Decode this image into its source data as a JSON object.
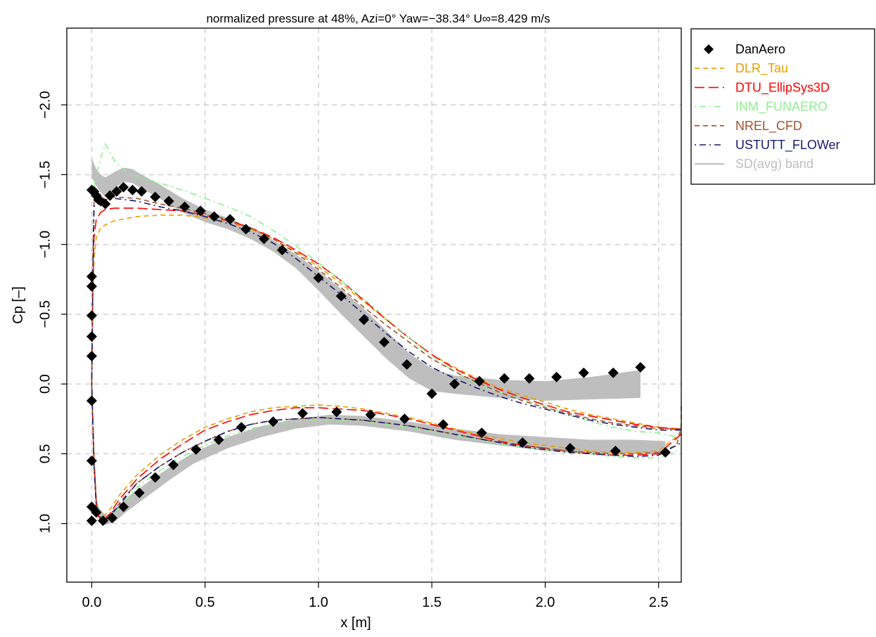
{
  "chart_data": {
    "type": "line",
    "title": "normalized pressure at 48%, Azi=0° Yaw=−38.34° U∞=8.429 m/s",
    "xlabel": "x [m]",
    "ylabel": "Cp [–]",
    "xlim": [
      -0.11,
      2.6
    ],
    "ylim": [
      1.42,
      -2.55
    ],
    "y_inverted": true,
    "grid": true,
    "legend_position": "top-right",
    "x_ticks": [
      {
        "value": 0.0,
        "label": "0.0"
      },
      {
        "value": 0.5,
        "label": "0.5"
      },
      {
        "value": 1.0,
        "label": "1.0"
      },
      {
        "value": 1.5,
        "label": "1.5"
      },
      {
        "value": 2.0,
        "label": "2.0"
      },
      {
        "value": 2.5,
        "label": "2.5"
      }
    ],
    "y_ticks": [
      {
        "value": -2.0,
        "label": "−2.0"
      },
      {
        "value": -1.5,
        "label": "−1.5"
      },
      {
        "value": -1.0,
        "label": "−1.0"
      },
      {
        "value": -0.5,
        "label": "−0.5"
      },
      {
        "value": 0.0,
        "label": "0.0"
      },
      {
        "value": 0.5,
        "label": "0.5"
      },
      {
        "value": 1.0,
        "label": "1.0"
      }
    ],
    "legend": [
      {
        "name": "DanAero",
        "color": "#000000",
        "style": "diamond"
      },
      {
        "name": "DLR_Tau",
        "color": "#E69F00",
        "style": "dashed"
      },
      {
        "name": "DTU_EllipSys3D",
        "color": "#FF0000",
        "style": "longdash"
      },
      {
        "name": "INM_FUNAERO",
        "color": "#90EE90",
        "style": "dotdash"
      },
      {
        "name": "NREL_CFD",
        "color": "#A0522D",
        "style": "dashed"
      },
      {
        "name": "USTUTT_FLOWer",
        "color": "#191970",
        "style": "dotdash"
      },
      {
        "name": "SD(avg) band",
        "color": "#BEBEBE",
        "style": "solid"
      }
    ],
    "sd_band": {
      "upper_surface": [
        {
          "x": 0.0,
          "lo": -1.62,
          "hi": -1.48
        },
        {
          "x": 0.02,
          "lo": -1.54,
          "hi": -1.42
        },
        {
          "x": 0.04,
          "lo": -1.5,
          "hi": -1.37
        },
        {
          "x": 0.06,
          "lo": -1.48,
          "hi": -1.34
        },
        {
          "x": 0.1,
          "lo": -1.52,
          "hi": -1.4
        },
        {
          "x": 0.14,
          "lo": -1.55,
          "hi": -1.45
        },
        {
          "x": 0.18,
          "lo": -1.54,
          "hi": -1.44
        },
        {
          "x": 0.22,
          "lo": -1.5,
          "hi": -1.4
        },
        {
          "x": 0.3,
          "lo": -1.43,
          "hi": -1.33
        },
        {
          "x": 0.4,
          "lo": -1.33,
          "hi": -1.23
        },
        {
          "x": 0.5,
          "lo": -1.25,
          "hi": -1.16
        },
        {
          "x": 0.6,
          "lo": -1.19,
          "hi": -1.11
        },
        {
          "x": 0.7,
          "lo": -1.12,
          "hi": -1.04
        },
        {
          "x": 0.8,
          "lo": -1.03,
          "hi": -0.95
        },
        {
          "x": 0.9,
          "lo": -0.93,
          "hi": -0.83
        },
        {
          "x": 1.0,
          "lo": -0.81,
          "hi": -0.67
        },
        {
          "x": 1.1,
          "lo": -0.68,
          "hi": -0.5
        },
        {
          "x": 1.2,
          "lo": -0.54,
          "hi": -0.34
        },
        {
          "x": 1.3,
          "lo": -0.38,
          "hi": -0.18
        },
        {
          "x": 1.4,
          "lo": -0.22,
          "hi": -0.04
        },
        {
          "x": 1.5,
          "lo": -0.11,
          "hi": 0.05
        },
        {
          "x": 1.6,
          "lo": -0.06,
          "hi": 0.07
        },
        {
          "x": 1.8,
          "lo": -0.03,
          "hi": 0.1
        },
        {
          "x": 2.0,
          "lo": -0.02,
          "hi": 0.12
        },
        {
          "x": 2.2,
          "lo": -0.05,
          "hi": 0.11
        },
        {
          "x": 2.42,
          "lo": -0.1,
          "hi": 0.1
        }
      ],
      "lower_surface": [
        {
          "x": 0.03,
          "lo": 0.88,
          "hi": 0.96
        },
        {
          "x": 0.06,
          "lo": 0.94,
          "hi": 1.01
        },
        {
          "x": 0.1,
          "lo": 0.91,
          "hi": 0.99
        },
        {
          "x": 0.15,
          "lo": 0.82,
          "hi": 0.92
        },
        {
          "x": 0.25,
          "lo": 0.7,
          "hi": 0.8
        },
        {
          "x": 0.35,
          "lo": 0.59,
          "hi": 0.68
        },
        {
          "x": 0.45,
          "lo": 0.49,
          "hi": 0.57
        },
        {
          "x": 0.6,
          "lo": 0.38,
          "hi": 0.46
        },
        {
          "x": 0.75,
          "lo": 0.3,
          "hi": 0.38
        },
        {
          "x": 0.9,
          "lo": 0.25,
          "hi": 0.32
        },
        {
          "x": 1.05,
          "lo": 0.22,
          "hi": 0.29
        },
        {
          "x": 1.2,
          "lo": 0.23,
          "hi": 0.3
        },
        {
          "x": 1.4,
          "lo": 0.27,
          "hi": 0.34
        },
        {
          "x": 1.6,
          "lo": 0.32,
          "hi": 0.4
        },
        {
          "x": 1.8,
          "lo": 0.36,
          "hi": 0.44
        },
        {
          "x": 2.0,
          "lo": 0.38,
          "hi": 0.48
        },
        {
          "x": 2.2,
          "lo": 0.4,
          "hi": 0.5
        },
        {
          "x": 2.4,
          "lo": 0.4,
          "hi": 0.5
        },
        {
          "x": 2.53,
          "lo": 0.41,
          "hi": 0.51
        }
      ]
    },
    "series": [
      {
        "name": "DanAero",
        "type": "scatter",
        "marker": "diamond",
        "x": [
          0.0,
          0.01,
          0.02,
          0.03,
          0.04,
          0.06,
          0.08,
          0.11,
          0.14,
          0.18,
          0.22,
          0.28,
          0.34,
          0.41,
          0.48,
          0.54,
          0.61,
          0.68,
          0.76,
          0.84,
          1.0,
          1.1,
          1.2,
          1.29,
          1.39,
          1.5,
          1.6,
          1.71,
          1.82,
          1.93,
          2.05,
          2.17,
          2.3,
          2.42,
          0.0,
          0.0,
          0.0,
          0.0,
          0.0,
          0.0,
          0.0,
          0.0,
          0.0,
          0.02,
          0.05,
          0.09,
          0.14,
          0.21,
          0.28,
          0.36,
          0.46,
          0.56,
          0.66,
          0.8,
          0.93,
          1.08,
          1.23,
          1.38,
          1.55,
          1.72,
          1.9,
          2.11,
          2.31,
          2.53
        ],
        "y": [
          -1.39,
          -1.38,
          -1.35,
          -1.32,
          -1.31,
          -1.29,
          -1.35,
          -1.38,
          -1.41,
          -1.39,
          -1.38,
          -1.34,
          -1.31,
          -1.27,
          -1.24,
          -1.2,
          -1.18,
          -1.11,
          -1.04,
          -0.96,
          -0.76,
          -0.63,
          -0.46,
          -0.3,
          -0.14,
          0.07,
          0.0,
          -0.02,
          -0.04,
          -0.04,
          -0.05,
          -0.08,
          -0.08,
          -0.12,
          -0.77,
          -0.7,
          -0.49,
          -0.34,
          -0.2,
          0.12,
          0.55,
          0.88,
          0.98,
          0.92,
          0.98,
          0.96,
          0.88,
          0.78,
          0.67,
          0.58,
          0.47,
          0.4,
          0.31,
          0.27,
          0.21,
          0.2,
          0.22,
          0.25,
          0.29,
          0.35,
          0.42,
          0.46,
          0.48,
          0.49
        ]
      },
      {
        "name": "DLR_Tau",
        "type": "line",
        "x": [
          0.0,
          0.005,
          0.01,
          0.02,
          0.04,
          0.06,
          0.1,
          0.2,
          0.3,
          0.4,
          0.5,
          0.6,
          0.7,
          0.8,
          0.9,
          1.0,
          1.1,
          1.2,
          1.3,
          1.4,
          1.5,
          1.6,
          1.7,
          1.8,
          1.9,
          2.0,
          2.1,
          2.2,
          2.3,
          2.4,
          2.5,
          2.6
        ],
        "y": [
          0.0,
          -0.6,
          -0.9,
          -1.05,
          -1.12,
          -1.14,
          -1.17,
          -1.2,
          -1.21,
          -1.21,
          -1.19,
          -1.16,
          -1.11,
          -1.04,
          -0.95,
          -0.84,
          -0.72,
          -0.59,
          -0.46,
          -0.33,
          -0.21,
          -0.12,
          -0.04,
          0.03,
          0.08,
          0.13,
          0.18,
          0.22,
          0.25,
          0.28,
          0.31,
          0.32
        ]
      },
      {
        "name": "DLR_Tau",
        "part": "lower",
        "type": "line",
        "x": [
          0.0,
          0.01,
          0.02,
          0.03,
          0.05,
          0.08,
          0.12,
          0.2,
          0.3,
          0.4,
          0.5,
          0.6,
          0.7,
          0.8,
          0.9,
          1.0,
          1.1,
          1.2,
          1.3,
          1.4,
          1.5,
          1.6,
          1.7,
          1.8,
          1.9,
          2.0,
          2.1,
          2.2,
          2.3,
          2.4,
          2.5,
          2.6
        ],
        "y": [
          0.0,
          0.5,
          0.82,
          0.92,
          0.95,
          0.9,
          0.8,
          0.65,
          0.51,
          0.4,
          0.31,
          0.25,
          0.2,
          0.17,
          0.16,
          0.15,
          0.16,
          0.18,
          0.21,
          0.24,
          0.28,
          0.32,
          0.36,
          0.39,
          0.42,
          0.44,
          0.46,
          0.48,
          0.49,
          0.49,
          0.48,
          0.35
        ]
      },
      {
        "name": "DTU_EllipSys3D",
        "type": "line",
        "x": [
          0.0,
          0.005,
          0.01,
          0.02,
          0.04,
          0.06,
          0.1,
          0.2,
          0.3,
          0.4,
          0.5,
          0.6,
          0.7,
          0.8,
          0.9,
          1.0,
          1.1,
          1.2,
          1.3,
          1.4,
          1.5,
          1.6,
          1.7,
          1.8,
          1.9,
          2.0,
          2.1,
          2.2,
          2.3,
          2.4,
          2.5,
          2.6
        ],
        "y": [
          0.0,
          -0.7,
          -1.05,
          -1.18,
          -1.23,
          -1.25,
          -1.26,
          -1.26,
          -1.25,
          -1.24,
          -1.21,
          -1.17,
          -1.12,
          -1.05,
          -0.96,
          -0.86,
          -0.74,
          -0.6,
          -0.46,
          -0.33,
          -0.21,
          -0.11,
          -0.03,
          0.04,
          0.1,
          0.15,
          0.2,
          0.23,
          0.26,
          0.29,
          0.31,
          0.33
        ]
      },
      {
        "name": "DTU_EllipSys3D",
        "part": "lower",
        "type": "line",
        "x": [
          0.0,
          0.01,
          0.02,
          0.03,
          0.05,
          0.08,
          0.12,
          0.2,
          0.3,
          0.4,
          0.5,
          0.6,
          0.7,
          0.8,
          0.9,
          1.0,
          1.1,
          1.2,
          1.3,
          1.4,
          1.5,
          1.6,
          1.7,
          1.8,
          1.9,
          2.0,
          2.1,
          2.2,
          2.3,
          2.4,
          2.5,
          2.6
        ],
        "y": [
          0.0,
          0.55,
          0.85,
          0.95,
          0.98,
          0.93,
          0.83,
          0.68,
          0.54,
          0.43,
          0.33,
          0.27,
          0.22,
          0.19,
          0.17,
          0.17,
          0.18,
          0.19,
          0.22,
          0.25,
          0.29,
          0.33,
          0.37,
          0.41,
          0.44,
          0.46,
          0.48,
          0.5,
          0.51,
          0.51,
          0.5,
          0.36
        ]
      },
      {
        "name": "INM_FUNAERO",
        "type": "line",
        "x": [
          0.0,
          0.01,
          0.02,
          0.04,
          0.06,
          0.08,
          0.1,
          0.15,
          0.2,
          0.3,
          0.4,
          0.5,
          0.6,
          0.7,
          0.8,
          0.9,
          1.0,
          1.1,
          1.2,
          1.3,
          1.4,
          1.5,
          1.6,
          1.7,
          1.8,
          1.9,
          2.0,
          2.1,
          2.2,
          2.3,
          2.4,
          2.5,
          2.58
        ],
        "y": [
          0.0,
          -1.4,
          -1.5,
          -1.62,
          -1.72,
          -1.66,
          -1.6,
          -1.52,
          -1.49,
          -1.44,
          -1.39,
          -1.33,
          -1.27,
          -1.2,
          -1.1,
          -0.99,
          -0.87,
          -0.74,
          -0.61,
          -0.47,
          -0.33,
          -0.2,
          -0.09,
          0.0,
          0.06,
          0.11,
          0.16,
          0.22,
          0.27,
          0.31,
          0.34,
          0.35,
          0.38
        ]
      },
      {
        "name": "INM_FUNAERO",
        "part": "lower",
        "type": "line",
        "x": [
          0.0,
          0.01,
          0.02,
          0.04,
          0.06,
          0.1,
          0.15,
          0.2,
          0.3,
          0.4,
          0.5,
          0.6,
          0.7,
          0.8,
          0.9,
          1.0,
          1.1,
          1.2,
          1.3,
          1.4,
          1.5,
          1.6,
          1.7,
          1.8,
          1.9,
          2.0,
          2.1,
          2.2,
          2.3,
          2.4,
          2.5,
          2.58
        ],
        "y": [
          0.0,
          0.6,
          0.85,
          0.96,
          0.97,
          0.92,
          0.83,
          0.74,
          0.62,
          0.52,
          0.44,
          0.37,
          0.32,
          0.29,
          0.27,
          0.26,
          0.26,
          0.27,
          0.29,
          0.31,
          0.34,
          0.37,
          0.4,
          0.43,
          0.45,
          0.47,
          0.49,
          0.5,
          0.52,
          0.53,
          0.53,
          0.48
        ]
      },
      {
        "name": "NREL_CFD",
        "type": "line",
        "x": [
          0.0,
          0.005,
          0.01,
          0.02,
          0.04,
          0.06,
          0.1,
          0.2,
          0.3,
          0.4,
          0.5,
          0.6,
          0.7,
          0.8,
          0.9,
          1.0,
          1.1,
          1.2,
          1.3,
          1.4,
          1.5,
          1.6,
          1.7,
          1.8,
          1.9,
          2.0,
          2.1,
          2.2,
          2.3,
          2.4,
          2.5,
          2.6
        ],
        "y": [
          0.0,
          -0.9,
          -1.3,
          -1.38,
          -1.35,
          -1.32,
          -1.34,
          -1.33,
          -1.29,
          -1.26,
          -1.22,
          -1.18,
          -1.12,
          -1.04,
          -0.94,
          -0.82,
          -0.69,
          -0.55,
          -0.42,
          -0.3,
          -0.18,
          -0.09,
          -0.01,
          0.06,
          0.12,
          0.17,
          0.21,
          0.25,
          0.28,
          0.3,
          0.32,
          0.32
        ]
      },
      {
        "name": "NREL_CFD",
        "part": "lower",
        "type": "line",
        "x": [
          0.0,
          0.01,
          0.02,
          0.04,
          0.06,
          0.1,
          0.15,
          0.2,
          0.3,
          0.4,
          0.5,
          0.6,
          0.7,
          0.8,
          0.9,
          1.0,
          1.1,
          1.2,
          1.3,
          1.4,
          1.5,
          1.6,
          1.7,
          1.8,
          1.9,
          2.0,
          2.1,
          2.2,
          2.3,
          2.4,
          2.5,
          2.58,
          2.6,
          2.6
        ],
        "y": [
          0.0,
          0.6,
          0.88,
          0.98,
          0.97,
          0.9,
          0.8,
          0.71,
          0.59,
          0.49,
          0.41,
          0.34,
          0.29,
          0.26,
          0.25,
          0.24,
          0.25,
          0.26,
          0.28,
          0.3,
          0.33,
          0.36,
          0.39,
          0.42,
          0.44,
          0.46,
          0.48,
          0.49,
          0.5,
          0.5,
          0.49,
          0.44,
          0.3,
          0.13
        ]
      },
      {
        "name": "USTUTT_FLOWer",
        "type": "line",
        "x": [
          0.0,
          0.005,
          0.01,
          0.02,
          0.04,
          0.06,
          0.1,
          0.2,
          0.3,
          0.4,
          0.5,
          0.6,
          0.7,
          0.8,
          0.9,
          1.0,
          1.1,
          1.2,
          1.3,
          1.4,
          1.5,
          1.6,
          1.7,
          1.8,
          1.9,
          2.0,
          2.1,
          2.2,
          2.3,
          2.4,
          2.5,
          2.6
        ],
        "y": [
          0.0,
          -0.8,
          -1.25,
          -1.36,
          -1.34,
          -1.31,
          -1.33,
          -1.31,
          -1.27,
          -1.24,
          -1.2,
          -1.15,
          -1.09,
          -1.01,
          -0.9,
          -0.77,
          -0.64,
          -0.5,
          -0.36,
          -0.23,
          -0.12,
          -0.04,
          0.03,
          0.09,
          0.14,
          0.18,
          0.22,
          0.26,
          0.29,
          0.31,
          0.33,
          0.33
        ]
      },
      {
        "name": "USTUTT_FLOWer",
        "part": "lower",
        "type": "line",
        "x": [
          0.0,
          0.01,
          0.02,
          0.04,
          0.06,
          0.1,
          0.15,
          0.2,
          0.3,
          0.4,
          0.5,
          0.6,
          0.7,
          0.8,
          0.9,
          1.0,
          1.1,
          1.2,
          1.3,
          1.4,
          1.5,
          1.6,
          1.7,
          1.8,
          1.9,
          2.0,
          2.1,
          2.2,
          2.3,
          2.4,
          2.5,
          2.6
        ],
        "y": [
          0.0,
          0.58,
          0.86,
          0.97,
          0.98,
          0.91,
          0.81,
          0.71,
          0.59,
          0.49,
          0.41,
          0.34,
          0.29,
          0.26,
          0.25,
          0.24,
          0.25,
          0.26,
          0.28,
          0.3,
          0.33,
          0.36,
          0.39,
          0.42,
          0.45,
          0.47,
          0.49,
          0.5,
          0.51,
          0.52,
          0.51,
          0.42
        ]
      }
    ]
  }
}
